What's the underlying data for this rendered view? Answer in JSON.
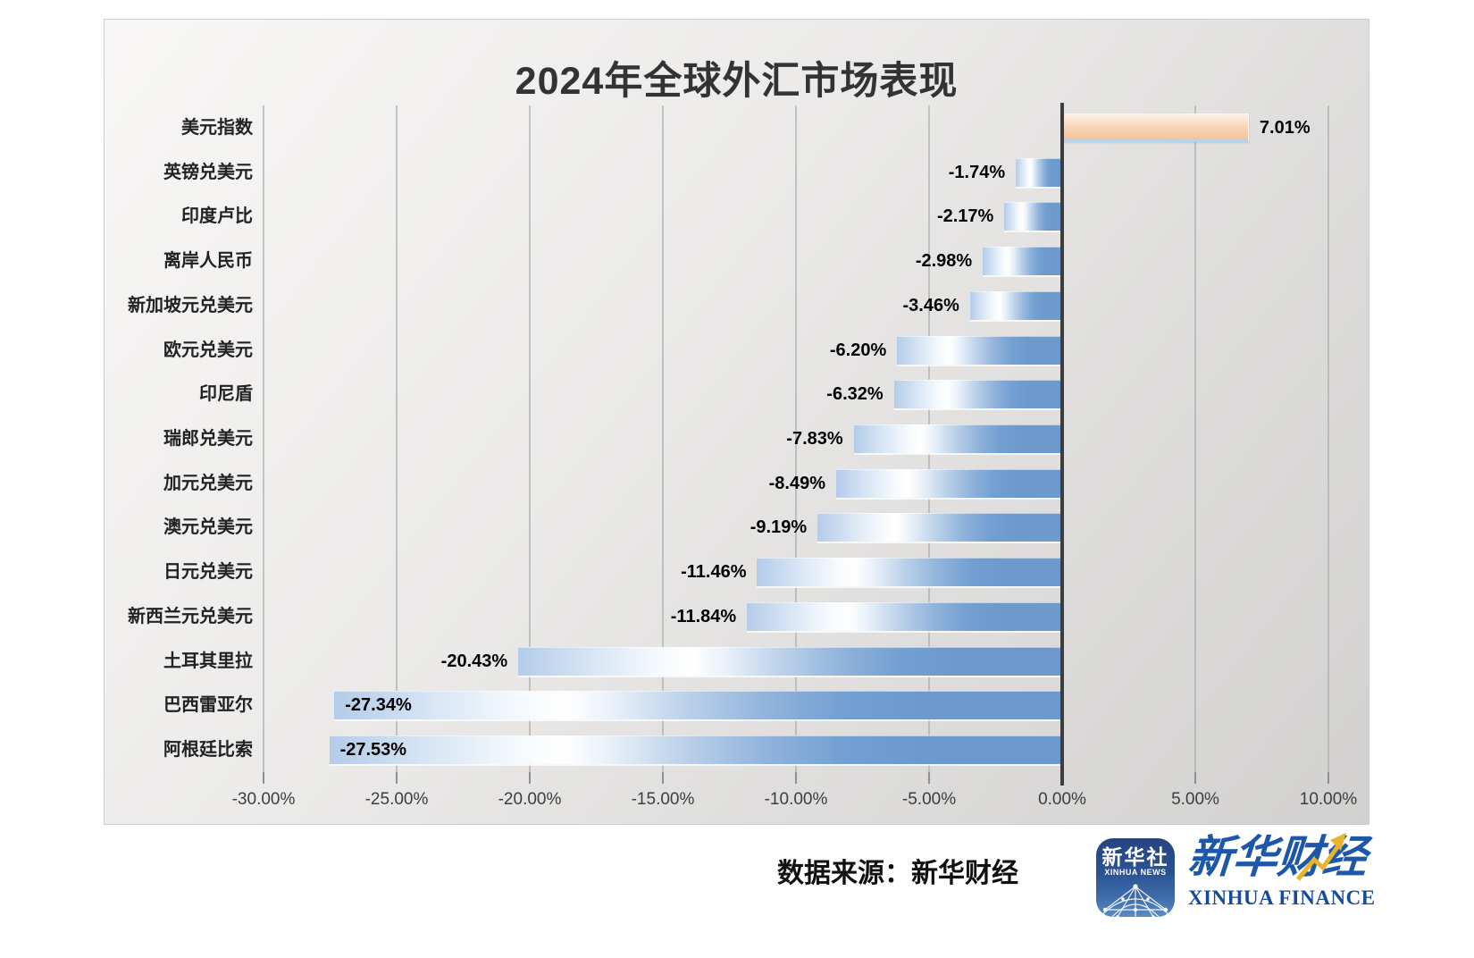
{
  "title": "2024年全球外汇市场表现",
  "source": {
    "label": "数据来源：新华财经"
  },
  "logos": {
    "xinhua_news": {
      "cn": "新华社",
      "en": "XINHUA NEWS"
    },
    "xinhua_finance": {
      "cn": "新华财经",
      "en": "XINHUA FINANCE"
    }
  },
  "chart_data": {
    "type": "bar",
    "orientation": "horizontal",
    "title": "2024年全球外汇市场表现",
    "xlabel": "",
    "ylabel": "",
    "categories": [
      "美元指数",
      "英镑兑美元",
      "印度卢比",
      "离岸人民币",
      "新加坡元兑美元",
      "欧元兑美元",
      "印尼盾",
      "瑞郎兑美元",
      "加元兑美元",
      "澳元兑美元",
      "日元兑美元",
      "新西兰元兑美元",
      "土耳其里拉",
      "巴西雷亚尔",
      "阿根廷比索"
    ],
    "values": [
      7.01,
      -1.74,
      -2.17,
      -2.98,
      -3.46,
      -6.2,
      -6.32,
      -7.83,
      -8.49,
      -9.19,
      -11.46,
      -11.84,
      -20.43,
      -27.34,
      -27.53
    ],
    "value_labels": [
      "7.01%",
      "-1.74%",
      "-2.17%",
      "-2.98%",
      "-3.46%",
      "-6.20%",
      "-6.32%",
      "-7.83%",
      "-8.49%",
      "-9.19%",
      "-11.46%",
      "-11.84%",
      "-20.43%",
      "-27.34%",
      "-27.53%"
    ],
    "inside_label_indices": [
      13,
      14
    ],
    "xlim": [
      -30,
      10
    ],
    "x_tick_values": [
      -30,
      -25,
      -20,
      -15,
      -10,
      -5,
      0,
      5,
      10
    ],
    "x_tick_labels": [
      "-30.00%",
      "-25.00%",
      "-20.00%",
      "-15.00%",
      "-10.00%",
      "-5.00%",
      "0.00%",
      "5.00%",
      "10.00%"
    ],
    "grid": true,
    "legend": "none",
    "colors": {
      "positive_bar": "#f4cda8",
      "negative_bar": "#6d99cd",
      "bar_highlight": "#ffffff",
      "axis_line": "#3d3d3d",
      "gridline": "#ababab",
      "value_label": "#000000",
      "category_label": "#222222",
      "card_background_start": "#f8f7f6",
      "card_background_end": "#d2d1d0"
    }
  }
}
